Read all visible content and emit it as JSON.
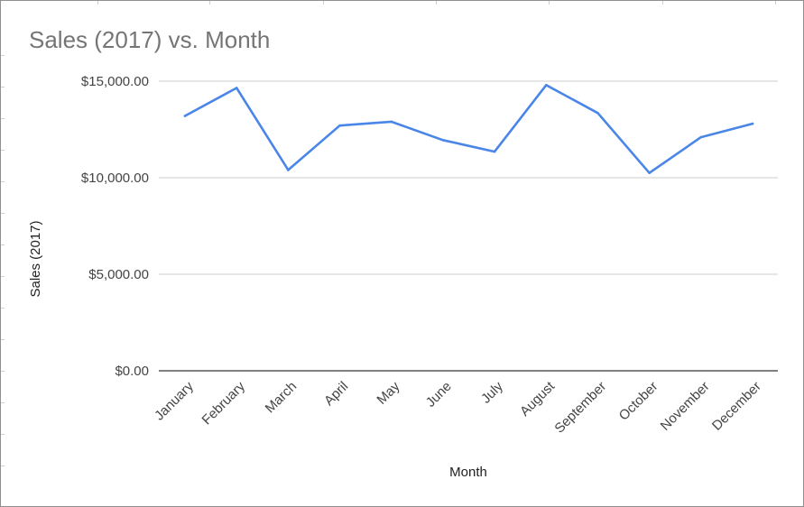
{
  "chart_data": {
    "type": "line",
    "title": "Sales (2017) vs. Month",
    "xlabel": "Month",
    "ylabel": "Sales (2017)",
    "categories": [
      "January",
      "February",
      "March",
      "April",
      "May",
      "June",
      "July",
      "August",
      "September",
      "October",
      "November",
      "December"
    ],
    "series": [
      {
        "values": [
          13200,
          14650,
          10400,
          12700,
          12900,
          11950,
          11350,
          14800,
          13350,
          10250,
          12100,
          12800
        ]
      }
    ],
    "yticks": [
      0,
      5000,
      10000,
      15000
    ],
    "ytick_labels": [
      "$0.00",
      "$5,000.00",
      "$10,000.00",
      "$15,000.00"
    ],
    "ylim": [
      0,
      16000
    ],
    "grid": true,
    "legend": "none",
    "colors": {
      "line": "#4a86e8",
      "grid": "#cccccc",
      "baseline": "#333333",
      "title": "#757575"
    }
  }
}
